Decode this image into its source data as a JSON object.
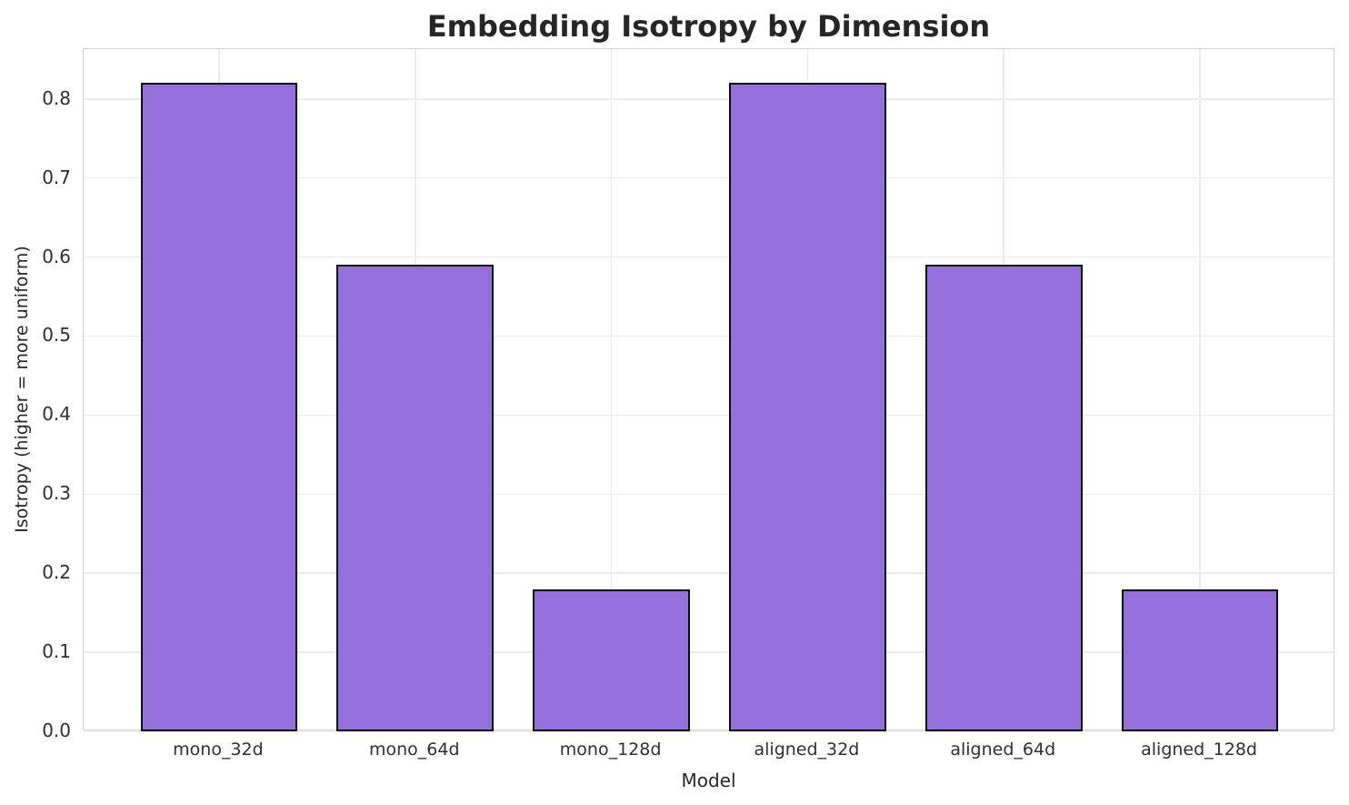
{
  "chart_data": {
    "type": "bar",
    "title": "Embedding Isotropy by Dimension",
    "xlabel": "Model",
    "ylabel": "Isotropy (higher = more uniform)",
    "categories": [
      "mono_32d",
      "mono_64d",
      "mono_128d",
      "aligned_32d",
      "aligned_64d",
      "aligned_128d"
    ],
    "values": [
      0.82,
      0.59,
      0.18,
      0.82,
      0.59,
      0.18
    ],
    "yticks": [
      0.0,
      0.1,
      0.2,
      0.3,
      0.4,
      0.5,
      0.6,
      0.7,
      0.8
    ],
    "ylim": [
      0,
      0.863
    ],
    "xlim": [
      -0.69,
      5.69
    ],
    "bar_width_units": 0.8,
    "grid": true,
    "legend": "none",
    "bar_color": "#9370DB",
    "bar_edge_color": "#0d0d0d",
    "grid_color": "#ebebeb",
    "spine_color": "#d2d2d2",
    "title_color": "#262626",
    "tick_color": "#303030"
  }
}
